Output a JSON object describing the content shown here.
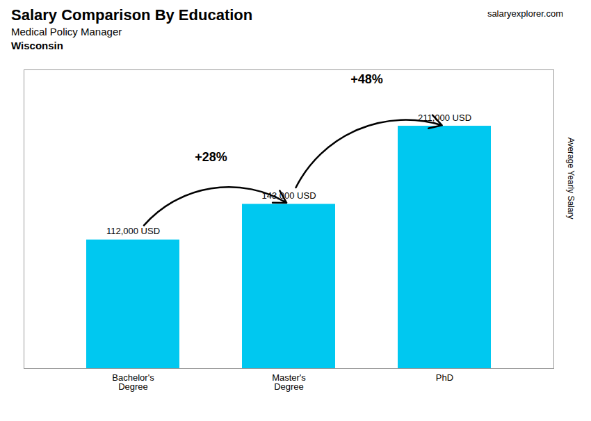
{
  "chart_data": {
    "type": "bar",
    "title": "Salary Comparison By Education",
    "subtitle": "Medical Policy Manager",
    "location": "Wisconsin",
    "watermark": "salaryexplorer.com",
    "ylabel": "Average Yearly Salary",
    "categories": [
      "Bachelor's\nDegree",
      "Master's\nDegree",
      "PhD"
    ],
    "values": [
      112000,
      143000,
      211000
    ],
    "value_labels": [
      "112,000 USD",
      "143,000 USD",
      "211,000 USD"
    ],
    "data_labels": true,
    "annotations": [
      "+28%",
      "+48%"
    ],
    "color": "#00C8F0",
    "ylim": [
      0,
      260000
    ],
    "tick_labels": "x",
    "grid": false
  }
}
